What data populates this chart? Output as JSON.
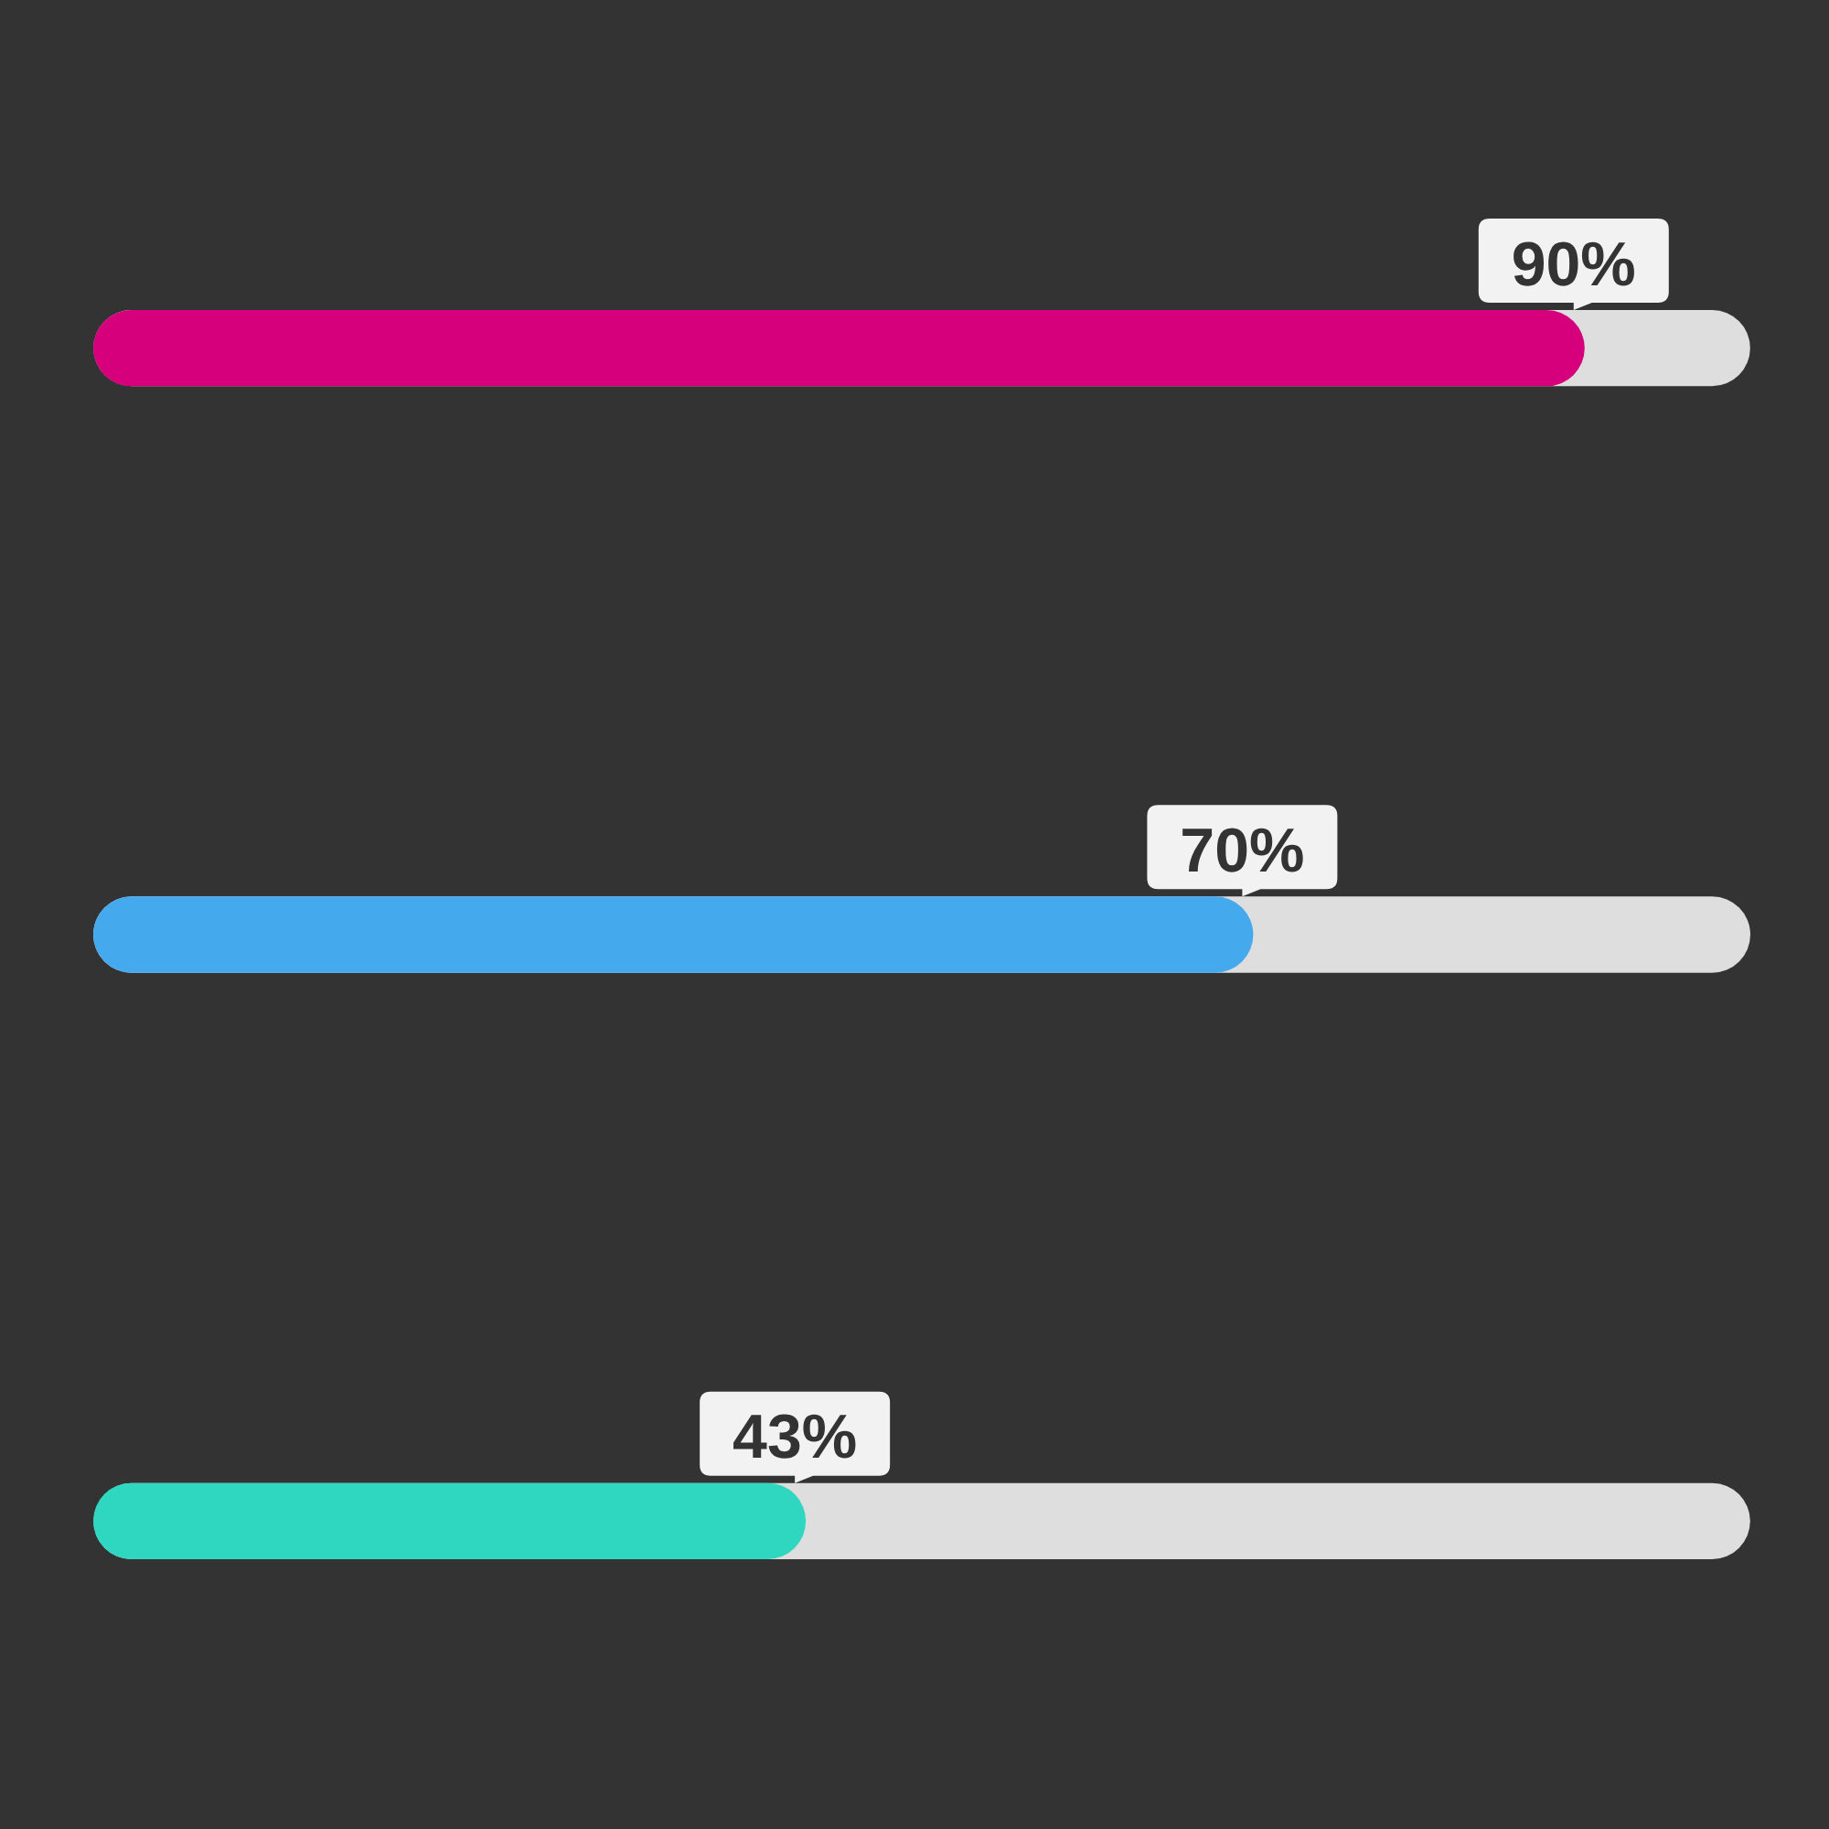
{
  "chart_data": {
    "type": "bar",
    "orientation": "horizontal",
    "categories": [
      null,
      null,
      null
    ],
    "xlim": [
      0,
      100
    ],
    "tick_labels": false,
    "legend": false,
    "series": [
      {
        "colors": [
          "#d6007c",
          "#45a9ee",
          "#2fd6c0"
        ],
        "values": [
          90,
          70,
          43
        ],
        "value_labels": [
          "90%",
          "70%",
          "43%"
        ]
      }
    ]
  }
}
